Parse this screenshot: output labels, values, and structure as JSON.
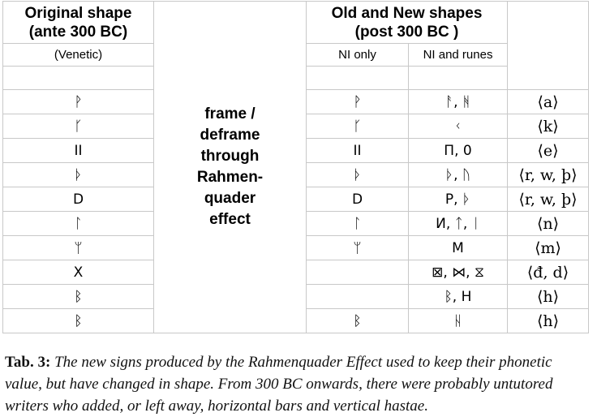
{
  "header": {
    "col1_line1": "Original shape",
    "col1_line2": "(ante 300 BC)",
    "col1_sub": "(Venetic)",
    "col3_line1": "Old and New shapes",
    "col3_line2": "(post 300 BC )",
    "sub_ni_only": "NI only",
    "sub_ni_runes": "NI and runes"
  },
  "middle": {
    "lines": [
      "frame /",
      "deframe",
      "through",
      "Rahmen-",
      "quader",
      "effect"
    ]
  },
  "rows": [
    {
      "original": "ᚹ",
      "ni_only": "ᚹ",
      "ni_runes": "ᚨ, ᚻ",
      "phonetic": "⟨a⟩"
    },
    {
      "original": "ᚴ",
      "ni_only": "ᚴ",
      "ni_runes": "ᚲ",
      "phonetic": "⟨k⟩"
    },
    {
      "original": "II",
      "ni_only": "II",
      "ni_runes": "П, 0",
      "phonetic": "⟨e⟩"
    },
    {
      "original": "ᚦ",
      "ni_only": "ᚦ",
      "ni_runes": "ᚦ, ᚢ",
      "phonetic": "⟨r, w, þ⟩"
    },
    {
      "original": "D",
      "ni_only": "D",
      "ni_runes": "P, ᚦ",
      "phonetic": "⟨r, w, þ⟩"
    },
    {
      "original": "ᛚ",
      "ni_only": "ᛚ",
      "ni_runes": "И, ᛏ, ᛁ",
      "phonetic": "⟨n⟩"
    },
    {
      "original": "ᛘ",
      "ni_only": "ᛘ",
      "ni_runes": "M",
      "phonetic": "⟨m⟩"
    },
    {
      "original": "X",
      "ni_only": "",
      "ni_runes": "⊠, ⋈, ⧖",
      "phonetic": "⟨đ, d⟩"
    },
    {
      "original": "ᛒ",
      "ni_only": "",
      "ni_runes": "ᛒ, H",
      "phonetic": "⟨h⟩"
    },
    {
      "original": "ᛒ",
      "ni_only": "ᛒ",
      "ni_runes": "ᚺ",
      "phonetic": "⟨h⟩"
    }
  ],
  "caption": {
    "label": "Tab. 3:",
    "text": "The new signs produced by the Rahmenquader Effect used to keep their phonetic value, but have changed in shape. From 300 BC onwards, there were probably untutored writers who added, or left away, horizontal bars and vertical hastae."
  }
}
